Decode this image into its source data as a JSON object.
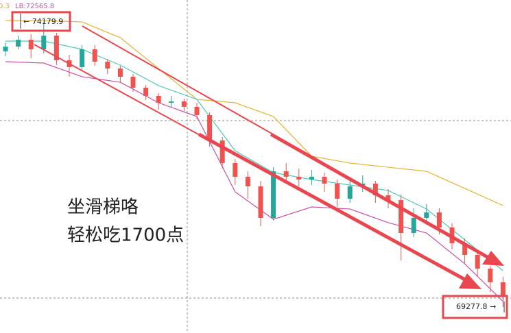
{
  "chart_data": {
    "type": "candlestick",
    "indicator_label": "0.3",
    "lb_label": "LB:72565.8",
    "annotation": [
      "坐滑梯咯",
      "轻松吃1700点"
    ],
    "high_marker": {
      "value": 74179.9,
      "label": "← 74179.9"
    },
    "low_marker": {
      "value": 69277.8,
      "label": "69277.8 →"
    },
    "ylim": [
      68830,
      74555
    ],
    "up_color": "#26a69a",
    "down_color": "#ef5350",
    "open": [
      73672,
      73754,
      73872,
      73707,
      73942,
      73518,
      73401,
      73707,
      73495,
      73377,
      73236,
      73047,
      72906,
      72788,
      72812,
      72718,
      72576,
      72140,
      71751,
      71516,
      71351,
      70809,
      71610,
      71516,
      71469,
      71516,
      71398,
      71139,
      71351,
      71398,
      71198,
      71115,
      70550,
      70809,
      70903,
      70644,
      70373,
      70173,
      69937,
      69702
    ],
    "high": [
      73825,
      73942,
      73966,
      74179.9,
      73990,
      73613,
      73778,
      73778,
      73542,
      73424,
      73283,
      73094,
      72953,
      72906,
      72859,
      72788,
      72623,
      72199,
      71822,
      71610,
      71445,
      71680,
      71751,
      71657,
      71634,
      71587,
      71469,
      71469,
      71539,
      71445,
      71304,
      71210,
      70974,
      71045,
      70974,
      70715,
      70456,
      70267,
      69984,
      69796
    ],
    "low": [
      73589,
      73707,
      73554,
      73636,
      73436,
      73236,
      73330,
      73424,
      73283,
      73141,
      72976,
      72835,
      72670,
      72718,
      72647,
      72505,
      72034,
      71657,
      71374,
      71139,
      70668,
      70762,
      71422,
      71351,
      71374,
      71257,
      70997,
      71068,
      71257,
      71068,
      70974,
      70079,
      70479,
      70715,
      70526,
      70267,
      70032,
      69796,
      69537,
      69277.8
    ],
    "close": [
      73754,
      73872,
      73707,
      73942,
      73518,
      73401,
      73707,
      73495,
      73377,
      73236,
      73047,
      72906,
      72788,
      72812,
      72718,
      72576,
      72140,
      71751,
      71516,
      71351,
      70809,
      71610,
      71516,
      71469,
      71516,
      71398,
      71139,
      71351,
      71398,
      71198,
      71115,
      70550,
      70809,
      70903,
      70644,
      70373,
      70173,
      69937,
      69702,
      69466
    ],
    "bands": [
      {
        "color": "#e6b432",
        "x": [
          0,
          3,
          6,
          9,
          12,
          15,
          18,
          21,
          24,
          27,
          30,
          33,
          36,
          39
        ],
        "values": [
          74202,
          74202,
          74178,
          73907,
          73377,
          72847,
          72788,
          72552,
          71869,
          71751,
          71680,
          71610,
          71316,
          71021
        ]
      },
      {
        "color": "#4fc8b6",
        "x": [
          0,
          3,
          6,
          9,
          12,
          15,
          18,
          21,
          24,
          27,
          30,
          33,
          36,
          39
        ],
        "values": [
          73848,
          73848,
          73707,
          73436,
          73083,
          72847,
          71963,
          71587,
          71469,
          71374,
          71280,
          70962,
          70432,
          69902
        ]
      },
      {
        "color": "#c94fa8",
        "x": [
          0,
          3,
          6,
          9,
          12,
          15,
          18,
          21,
          24,
          27,
          30,
          33,
          36,
          39
        ],
        "values": [
          73495,
          73471,
          73236,
          73141,
          72788,
          72552,
          71257,
          70785,
          70997,
          70962,
          70727,
          70550,
          70020,
          69372
        ]
      }
    ]
  }
}
